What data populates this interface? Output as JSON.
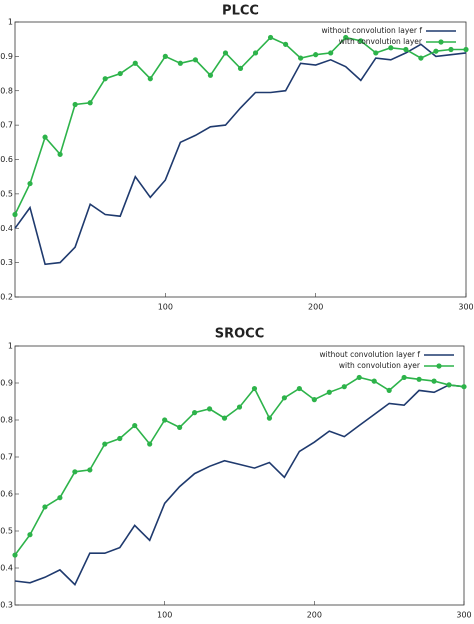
{
  "chart_data": [
    {
      "type": "line",
      "title": "PLCC",
      "x": [
        0,
        10,
        20,
        30,
        40,
        50,
        60,
        70,
        80,
        90,
        100,
        110,
        120,
        130,
        140,
        150,
        160,
        170,
        180,
        190,
        200,
        210,
        220,
        230,
        240,
        250,
        260,
        270,
        280,
        290,
        300
      ],
      "series": [
        {
          "name": "without convolution layer f",
          "color": "#1f3a6e",
          "marker": false,
          "values": [
            0.4,
            0.46,
            0.295,
            0.3,
            0.345,
            0.47,
            0.44,
            0.435,
            0.55,
            0.49,
            0.54,
            0.65,
            0.67,
            0.695,
            0.7,
            0.75,
            0.795,
            0.795,
            0.8,
            0.88,
            0.875,
            0.89,
            0.87,
            0.83,
            0.895,
            0.89,
            0.91,
            0.935,
            0.9,
            0.905,
            0.91
          ]
        },
        {
          "name": "with convolution layer",
          "color": "#2db34a",
          "marker": true,
          "values": [
            0.44,
            0.53,
            0.665,
            0.615,
            0.76,
            0.765,
            0.835,
            0.85,
            0.88,
            0.835,
            0.9,
            0.88,
            0.89,
            0.845,
            0.91,
            0.865,
            0.91,
            0.955,
            0.935,
            0.895,
            0.905,
            0.91,
            0.955,
            0.945,
            0.91,
            0.925,
            0.92,
            0.895,
            0.915,
            0.92,
            0.92
          ]
        }
      ],
      "xlim": [
        0,
        300
      ],
      "xticks": [
        100,
        200,
        300
      ],
      "ylim": [
        0.2,
        1
      ],
      "yticks": [
        0.2,
        0.3,
        0.4,
        0.5,
        0.6,
        0.7,
        0.8,
        0.9,
        1
      ],
      "grid": false,
      "legend": "top-right"
    },
    {
      "type": "line",
      "title": "SROCC",
      "x": [
        0,
        10,
        20,
        30,
        40,
        50,
        60,
        70,
        80,
        90,
        100,
        110,
        120,
        130,
        140,
        150,
        160,
        170,
        180,
        190,
        200,
        210,
        220,
        230,
        240,
        250,
        260,
        270,
        280,
        290,
        300
      ],
      "series": [
        {
          "name": "without convolution layer f",
          "color": "#1f3a6e",
          "marker": false,
          "values": [
            0.365,
            0.36,
            0.375,
            0.395,
            0.355,
            0.44,
            0.44,
            0.455,
            0.515,
            0.475,
            0.575,
            0.62,
            0.655,
            0.675,
            0.69,
            0.68,
            0.67,
            0.685,
            0.645,
            0.715,
            0.74,
            0.77,
            0.755,
            0.785,
            0.815,
            0.845,
            0.84,
            0.88,
            0.875,
            0.895,
            0.89
          ]
        },
        {
          "name": "with convolution ayer",
          "color": "#2db34a",
          "marker": true,
          "values": [
            0.435,
            0.49,
            0.565,
            0.59,
            0.66,
            0.665,
            0.735,
            0.75,
            0.785,
            0.735,
            0.8,
            0.78,
            0.82,
            0.83,
            0.805,
            0.835,
            0.885,
            0.805,
            0.86,
            0.885,
            0.855,
            0.875,
            0.89,
            0.915,
            0.905,
            0.88,
            0.915,
            0.91,
            0.905,
            0.895,
            0.89
          ]
        }
      ],
      "xlim": [
        0,
        300
      ],
      "xticks": [
        100,
        200,
        300
      ],
      "ylim": [
        0.3,
        1
      ],
      "yticks": [
        0.3,
        0.4,
        0.5,
        0.6,
        0.7,
        0.8,
        0.9,
        1
      ],
      "grid": false,
      "legend": "top-right"
    }
  ]
}
